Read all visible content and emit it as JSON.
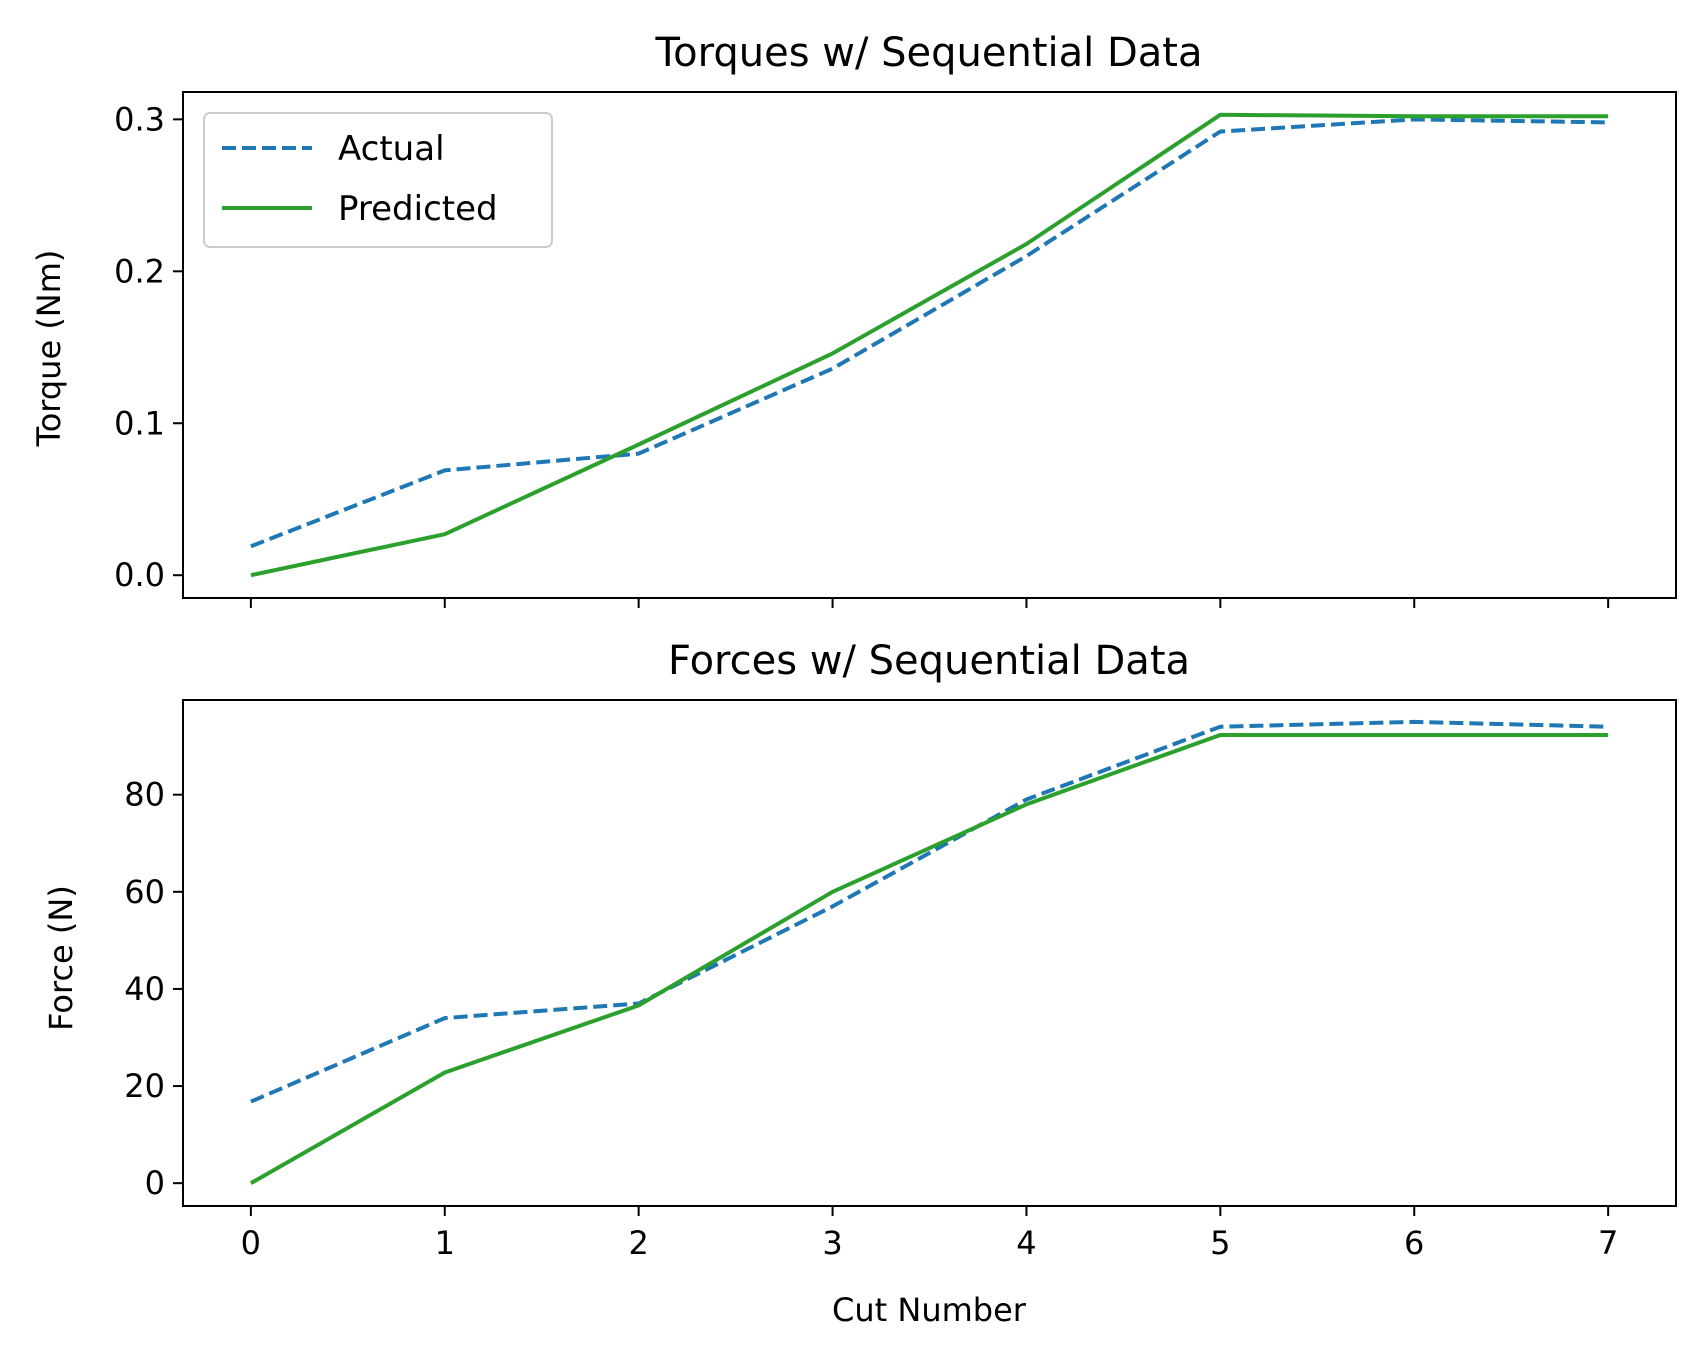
{
  "chart_data": [
    {
      "type": "line",
      "title": "Torques w/ Sequential Data",
      "xlabel": "",
      "ylabel": "Torque (Nm)",
      "x": [
        0,
        1,
        2,
        3,
        4,
        5,
        6,
        7
      ],
      "xlim": [
        -0.35,
        7.35
      ],
      "ylim": [
        -0.015,
        0.318
      ],
      "yticks": [
        0.0,
        0.1,
        0.2,
        0.3
      ],
      "ytick_labels": [
        "0.0",
        "0.1",
        "0.2",
        "0.3"
      ],
      "xticks": [
        0,
        1,
        2,
        3,
        4,
        5,
        6,
        7
      ],
      "xtick_labels": [],
      "grid": false,
      "legend": "upper-left",
      "series": [
        {
          "name": "Actual",
          "color": "#1f77b4",
          "style": "dashed",
          "values": [
            0.019,
            0.069,
            0.08,
            0.136,
            0.21,
            0.292,
            0.3,
            0.298
          ]
        },
        {
          "name": "Predicted",
          "color": "#2ca02c",
          "style": "solid",
          "values": [
            0.0,
            0.027,
            0.086,
            0.146,
            0.218,
            0.303,
            0.302,
            0.302
          ]
        }
      ]
    },
    {
      "type": "line",
      "title": "Forces w/ Sequential Data",
      "xlabel": "Cut Number",
      "ylabel": "Force (N)",
      "x": [
        0,
        1,
        2,
        3,
        4,
        5,
        6,
        7
      ],
      "xlim": [
        -0.35,
        7.35
      ],
      "ylim": [
        -4.7,
        99.5
      ],
      "yticks": [
        0,
        20,
        40,
        60,
        80
      ],
      "ytick_labels": [
        "0",
        "20",
        "40",
        "60",
        "80"
      ],
      "xticks": [
        0,
        1,
        2,
        3,
        4,
        5,
        6,
        7
      ],
      "xtick_labels": [
        "0",
        "1",
        "2",
        "3",
        "4",
        "5",
        "6",
        "7"
      ],
      "grid": false,
      "legend": "none",
      "series": [
        {
          "name": "Actual",
          "color": "#1f77b4",
          "style": "dashed",
          "values": [
            16.8,
            34.0,
            37.0,
            57.0,
            79.0,
            94.0,
            95.0,
            94.0
          ]
        },
        {
          "name": "Predicted",
          "color": "#2ca02c",
          "style": "solid",
          "values": [
            0.0,
            22.8,
            36.6,
            60.0,
            78.0,
            92.3,
            92.3,
            92.3
          ]
        }
      ]
    }
  ]
}
